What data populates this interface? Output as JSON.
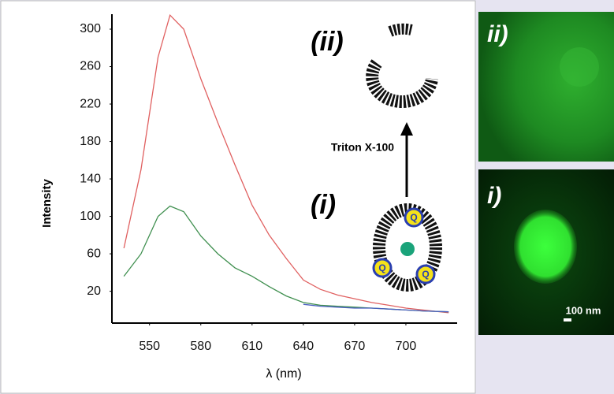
{
  "chart_data": {
    "type": "line",
    "ylabel": "Intensity",
    "xlabel": "λ (nm)",
    "x": [
      535,
      545,
      555,
      562,
      570,
      580,
      590,
      600,
      610,
      620,
      630,
      640,
      650,
      660,
      670,
      680,
      690,
      700,
      710,
      725
    ],
    "series": [
      {
        "color": "#e06060",
        "values": [
          66,
          150,
          270,
          315,
          300,
          247,
          200,
          155,
          112,
          80,
          55,
          32,
          22,
          16,
          12,
          8,
          5,
          2,
          0,
          -3
        ]
      },
      {
        "color": "#3f8f4f",
        "values": [
          36,
          60,
          100,
          111,
          105,
          79,
          60,
          45,
          36,
          25,
          15,
          8,
          5,
          4,
          3,
          2,
          1,
          0,
          -1,
          -2
        ]
      },
      {
        "color": "#4a5fc0",
        "values": [
          null,
          null,
          null,
          null,
          null,
          null,
          null,
          null,
          null,
          null,
          null,
          6,
          4,
          3,
          2,
          2,
          1,
          0,
          -1,
          -2
        ]
      }
    ],
    "xlim": [
      528,
      730
    ],
    "ylim": [
      -14,
      316
    ],
    "xticks": [
      550,
      580,
      610,
      640,
      670,
      700
    ],
    "yticks": [
      20,
      60,
      100,
      140,
      180,
      220,
      260,
      300
    ],
    "grid": false,
    "annotations": {
      "stage_ii": "(ii)",
      "stage_i": "(i)",
      "treatment": "Triton X-100",
      "quenchers": [
        "Q",
        "Q",
        "Q"
      ]
    }
  },
  "micrographs": [
    {
      "label": "ii)"
    },
    {
      "label": "i)",
      "scale_bar": "100 nm"
    }
  ]
}
